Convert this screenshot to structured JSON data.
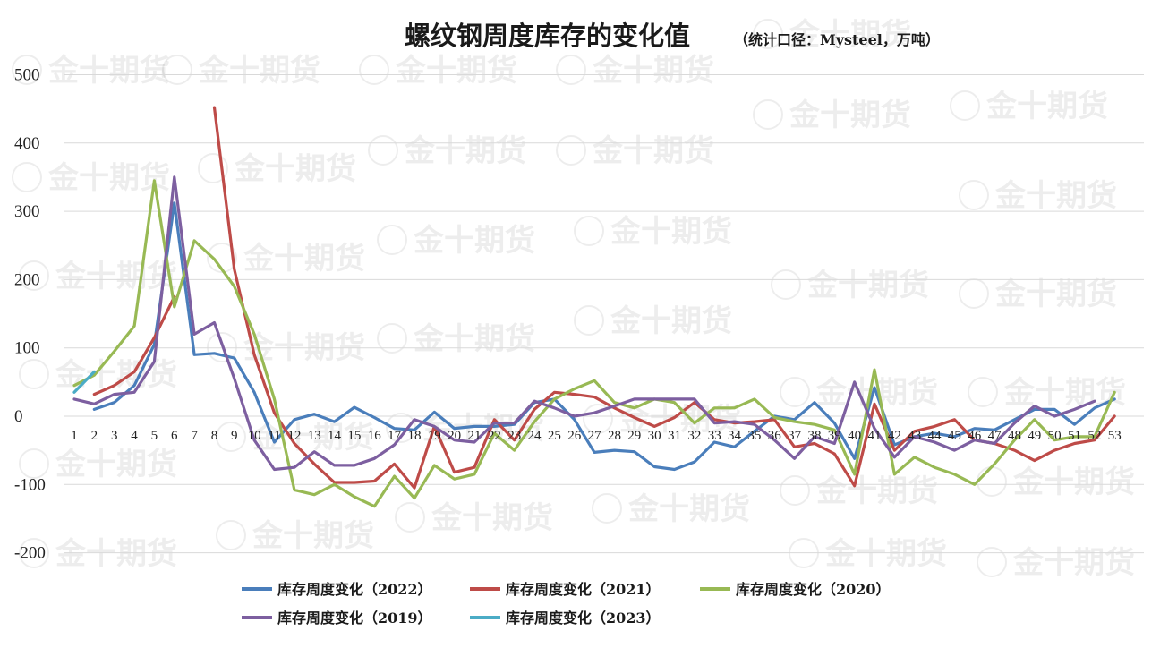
{
  "watermark": "金十期货",
  "chart_data": {
    "type": "line",
    "title": "螺纹钢周度库存的变化值",
    "subtitle": "（统计口径：Mysteel，万吨）",
    "ylim": [
      -200,
      500
    ],
    "yticks": [
      500,
      400,
      300,
      200,
      100,
      0,
      -100,
      -200
    ],
    "ytick_labels": [
      "500",
      "400",
      "300",
      "200",
      "100",
      "0",
      "-100",
      "-200"
    ],
    "x": [
      1,
      2,
      3,
      4,
      5,
      6,
      7,
      8,
      9,
      10,
      11,
      12,
      13,
      14,
      15,
      16,
      17,
      18,
      19,
      20,
      21,
      22,
      23,
      24,
      25,
      26,
      27,
      28,
      29,
      30,
      31,
      32,
      33,
      34,
      35,
      36,
      37,
      38,
      39,
      40,
      41,
      42,
      43,
      44,
      45,
      46,
      47,
      48,
      49,
      50,
      51,
      52,
      53
    ],
    "x_tick_labels": [
      "1",
      "2",
      "3",
      "4",
      "5",
      "6",
      "7",
      "8",
      "9",
      "10",
      "11",
      "12",
      "13",
      "14",
      "15",
      "16",
      "17",
      "18",
      "19",
      "20",
      "21",
      "22",
      "23",
      "24",
      "25",
      "26",
      "27",
      "28",
      "29",
      "30",
      "31",
      "32",
      "33",
      "34",
      "35",
      "36",
      "37",
      "38",
      "39",
      "40",
      "41",
      "42",
      "43",
      "44",
      "45",
      "46",
      "47",
      "48",
      "49",
      "50",
      "51",
      "52",
      "53"
    ],
    "grid": true,
    "legend_position": "bottom",
    "series": [
      {
        "name": "库存周度变化（2022）",
        "color": "#4a7ebb",
        "values": [
          null,
          10,
          20,
          45,
          105,
          312,
          90,
          92,
          85,
          35,
          -38,
          -5,
          3,
          -8,
          13,
          -2,
          -18,
          -20,
          6,
          -18,
          -15,
          -15,
          -12,
          20,
          25,
          -5,
          -53,
          -50,
          -52,
          -74,
          -78,
          -67,
          -38,
          -45,
          -22,
          0,
          -5,
          20,
          -10,
          -62,
          42,
          -42,
          -30,
          -25,
          -30,
          -18,
          -20,
          -5,
          10,
          10,
          -12,
          12,
          25
        ]
      },
      {
        "name": "库存周度变化（2021）",
        "color": "#be4b48",
        "values": [
          null,
          32,
          45,
          65,
          115,
          175,
          null,
          452,
          215,
          90,
          5,
          -40,
          -70,
          -97,
          -97,
          -95,
          -70,
          -105,
          -15,
          -82,
          -75,
          -5,
          -35,
          10,
          35,
          32,
          28,
          12,
          -2,
          -15,
          -2,
          20,
          -5,
          -10,
          -8,
          -5,
          -45,
          -40,
          -55,
          -102,
          18,
          -50,
          -22,
          -15,
          -5,
          -35,
          -40,
          -50,
          -65,
          -50,
          -40,
          -35,
          0
        ]
      },
      {
        "name": "库存周度变化（2020）",
        "color": "#98b954",
        "values": [
          45,
          60,
          95,
          132,
          345,
          160,
          257,
          230,
          190,
          120,
          25,
          -108,
          -115,
          -100,
          -118,
          -132,
          -88,
          -120,
          -72,
          -92,
          -85,
          -25,
          -50,
          -8,
          25,
          40,
          52,
          20,
          12,
          25,
          20,
          -10,
          12,
          12,
          25,
          -2,
          -8,
          -12,
          -20,
          -85,
          68,
          -85,
          -60,
          -75,
          -85,
          -100,
          -70,
          -35,
          -5,
          -35,
          -30,
          -30,
          35
        ]
      },
      {
        "name": "库存周度变化（2019）",
        "color": "#7d5fa0",
        "values": [
          25,
          18,
          32,
          35,
          80,
          350,
          120,
          137,
          55,
          -35,
          -78,
          -75,
          -52,
          -72,
          -72,
          -62,
          -42,
          -5,
          -15,
          -35,
          -38,
          -10,
          -10,
          22,
          12,
          0,
          5,
          15,
          25,
          25,
          25,
          25,
          -10,
          -8,
          -12,
          -35,
          -62,
          -30,
          -40,
          50,
          -18,
          -60,
          -30,
          -38,
          -50,
          -35,
          -40,
          -10,
          15,
          0,
          10,
          22,
          null
        ]
      },
      {
        "name": "库存周度变化（2023）",
        "color": "#4bacc6",
        "values": [
          35,
          65,
          null,
          null,
          null,
          null,
          null,
          null,
          null,
          null,
          null,
          null,
          null,
          null,
          null,
          null,
          null,
          null,
          null,
          null,
          null,
          null,
          null,
          null,
          null,
          null,
          null,
          null,
          null,
          null,
          null,
          null,
          null,
          null,
          null,
          null,
          null,
          null,
          null,
          null,
          null,
          null,
          null,
          null,
          null,
          null,
          null,
          null,
          null,
          null,
          null,
          null,
          null
        ]
      }
    ]
  }
}
